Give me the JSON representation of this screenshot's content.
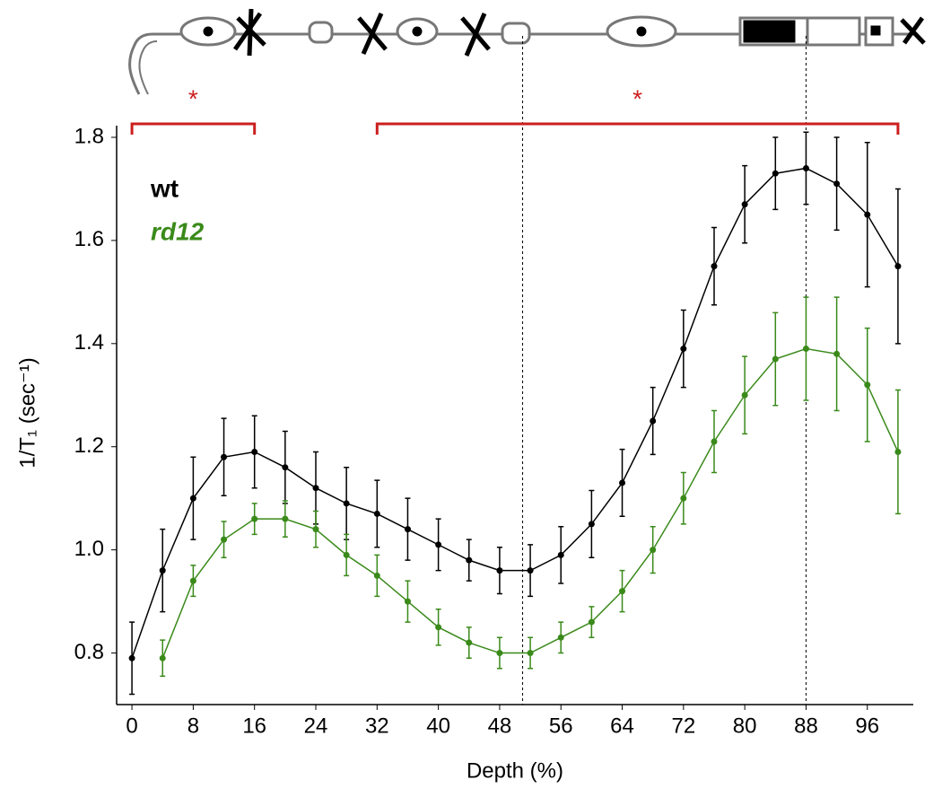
{
  "chart_data": {
    "type": "line",
    "xlabel": "Depth (%)",
    "ylabel": "1/T₁ (sec⁻¹)",
    "x": [
      0,
      4,
      8,
      12,
      16,
      20,
      24,
      28,
      32,
      36,
      40,
      44,
      48,
      52,
      56,
      60,
      64,
      68,
      72,
      76,
      80,
      84,
      88,
      92,
      96,
      100
    ],
    "series": [
      {
        "name": "wt",
        "color": "#000000",
        "values": [
          0.79,
          0.96,
          1.1,
          1.18,
          1.19,
          1.16,
          1.12,
          1.09,
          1.07,
          1.04,
          1.01,
          0.98,
          0.96,
          0.96,
          0.99,
          1.05,
          1.13,
          1.25,
          1.39,
          1.55,
          1.67,
          1.73,
          1.74,
          1.71,
          1.65,
          1.55
        ],
        "errors": [
          0.07,
          0.08,
          0.08,
          0.075,
          0.07,
          0.07,
          0.07,
          0.07,
          0.065,
          0.06,
          0.05,
          0.04,
          0.045,
          0.05,
          0.055,
          0.065,
          0.065,
          0.065,
          0.075,
          0.075,
          0.075,
          0.07,
          0.07,
          0.09,
          0.14,
          0.15
        ]
      },
      {
        "name": "rd12",
        "color": "#3a8a1a",
        "values": [
          null,
          0.79,
          0.94,
          1.02,
          1.06,
          1.06,
          1.04,
          0.99,
          0.95,
          0.9,
          0.85,
          0.82,
          0.8,
          0.8,
          0.83,
          0.86,
          0.92,
          1.0,
          1.1,
          1.21,
          1.3,
          1.37,
          1.39,
          1.38,
          1.32,
          1.19
        ],
        "errors": [
          null,
          0.035,
          0.03,
          0.035,
          0.03,
          0.035,
          0.035,
          0.04,
          0.04,
          0.04,
          0.035,
          0.03,
          0.03,
          0.03,
          0.03,
          0.03,
          0.04,
          0.045,
          0.05,
          0.06,
          0.075,
          0.09,
          0.1,
          0.11,
          0.11,
          0.12
        ]
      }
    ],
    "xlim": [
      -2,
      102
    ],
    "ylim": [
      0.7,
      1.82
    ],
    "xticks": [
      0,
      8,
      16,
      24,
      32,
      40,
      48,
      56,
      64,
      72,
      80,
      88,
      96
    ],
    "yticks": [
      0.8,
      {
        "value": 1,
        "label": "1.0"
      },
      1.2,
      1.4,
      1.6,
      1.8
    ],
    "vlines": [
      51,
      88
    ],
    "brackets": [
      {
        "from": 0,
        "to": 16,
        "label": "*"
      },
      {
        "from": 32,
        "to": 100,
        "label": "*"
      }
    ],
    "bracket_color": "#cc1f1f"
  }
}
